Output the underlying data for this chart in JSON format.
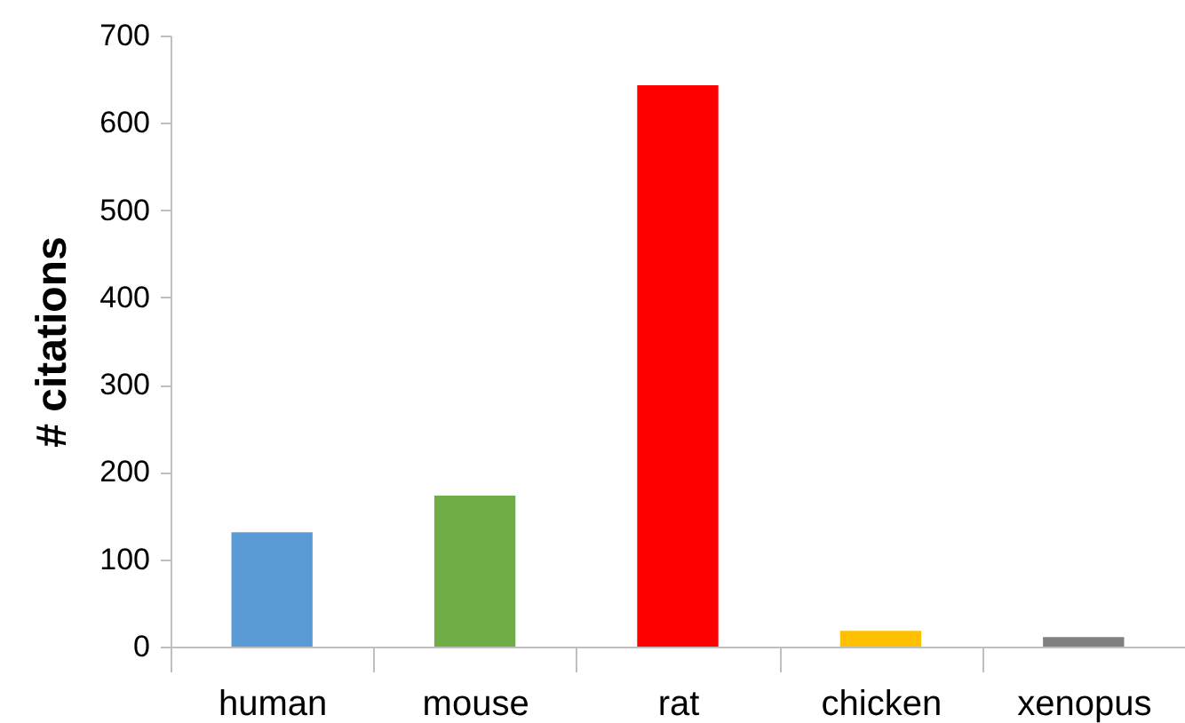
{
  "chart_data": {
    "type": "bar",
    "ylabel": "# citations",
    "categories": [
      "human",
      "mouse",
      "rat",
      "chicken",
      "xenopus"
    ],
    "values": [
      131,
      173,
      643,
      18,
      11
    ],
    "colors": [
      "#5b9bd5",
      "#70ad47",
      "#ff0000",
      "#ffc000",
      "#808080"
    ],
    "ylim": [
      0,
      700
    ],
    "yticks": [
      0,
      100,
      200,
      300,
      400,
      500,
      600,
      700
    ],
    "grid": false
  }
}
